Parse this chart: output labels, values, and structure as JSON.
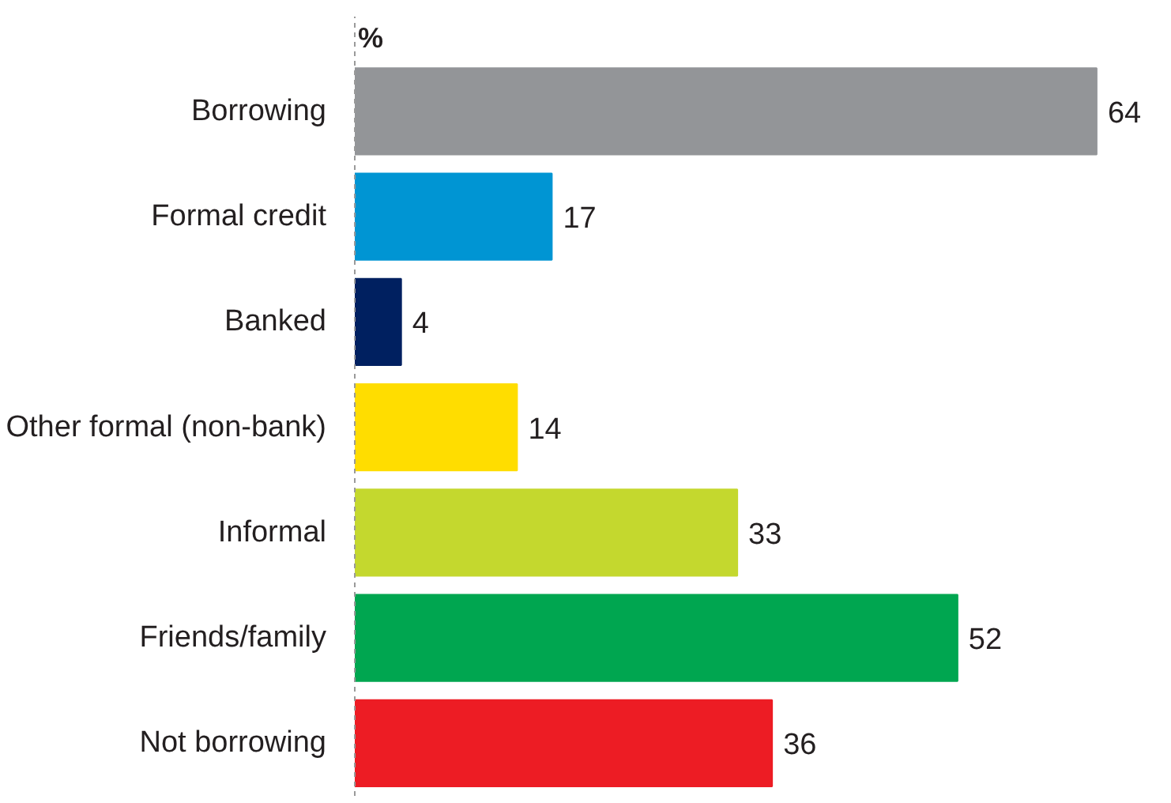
{
  "chart_data": {
    "type": "bar",
    "orientation": "horizontal",
    "xlabel": "%",
    "categories": [
      "Borrowing",
      "Formal credit",
      "Banked",
      "Other formal (non-bank)",
      "Informal",
      "Friends/family",
      "Not borrowing"
    ],
    "values": [
      64,
      17,
      4,
      14,
      33,
      52,
      36
    ],
    "colors": [
      "#939598",
      "#0095d3",
      "#002060",
      "#ffdd00",
      "#c4d82e",
      "#00a650",
      "#ed1c24"
    ],
    "data_labels": true
  }
}
